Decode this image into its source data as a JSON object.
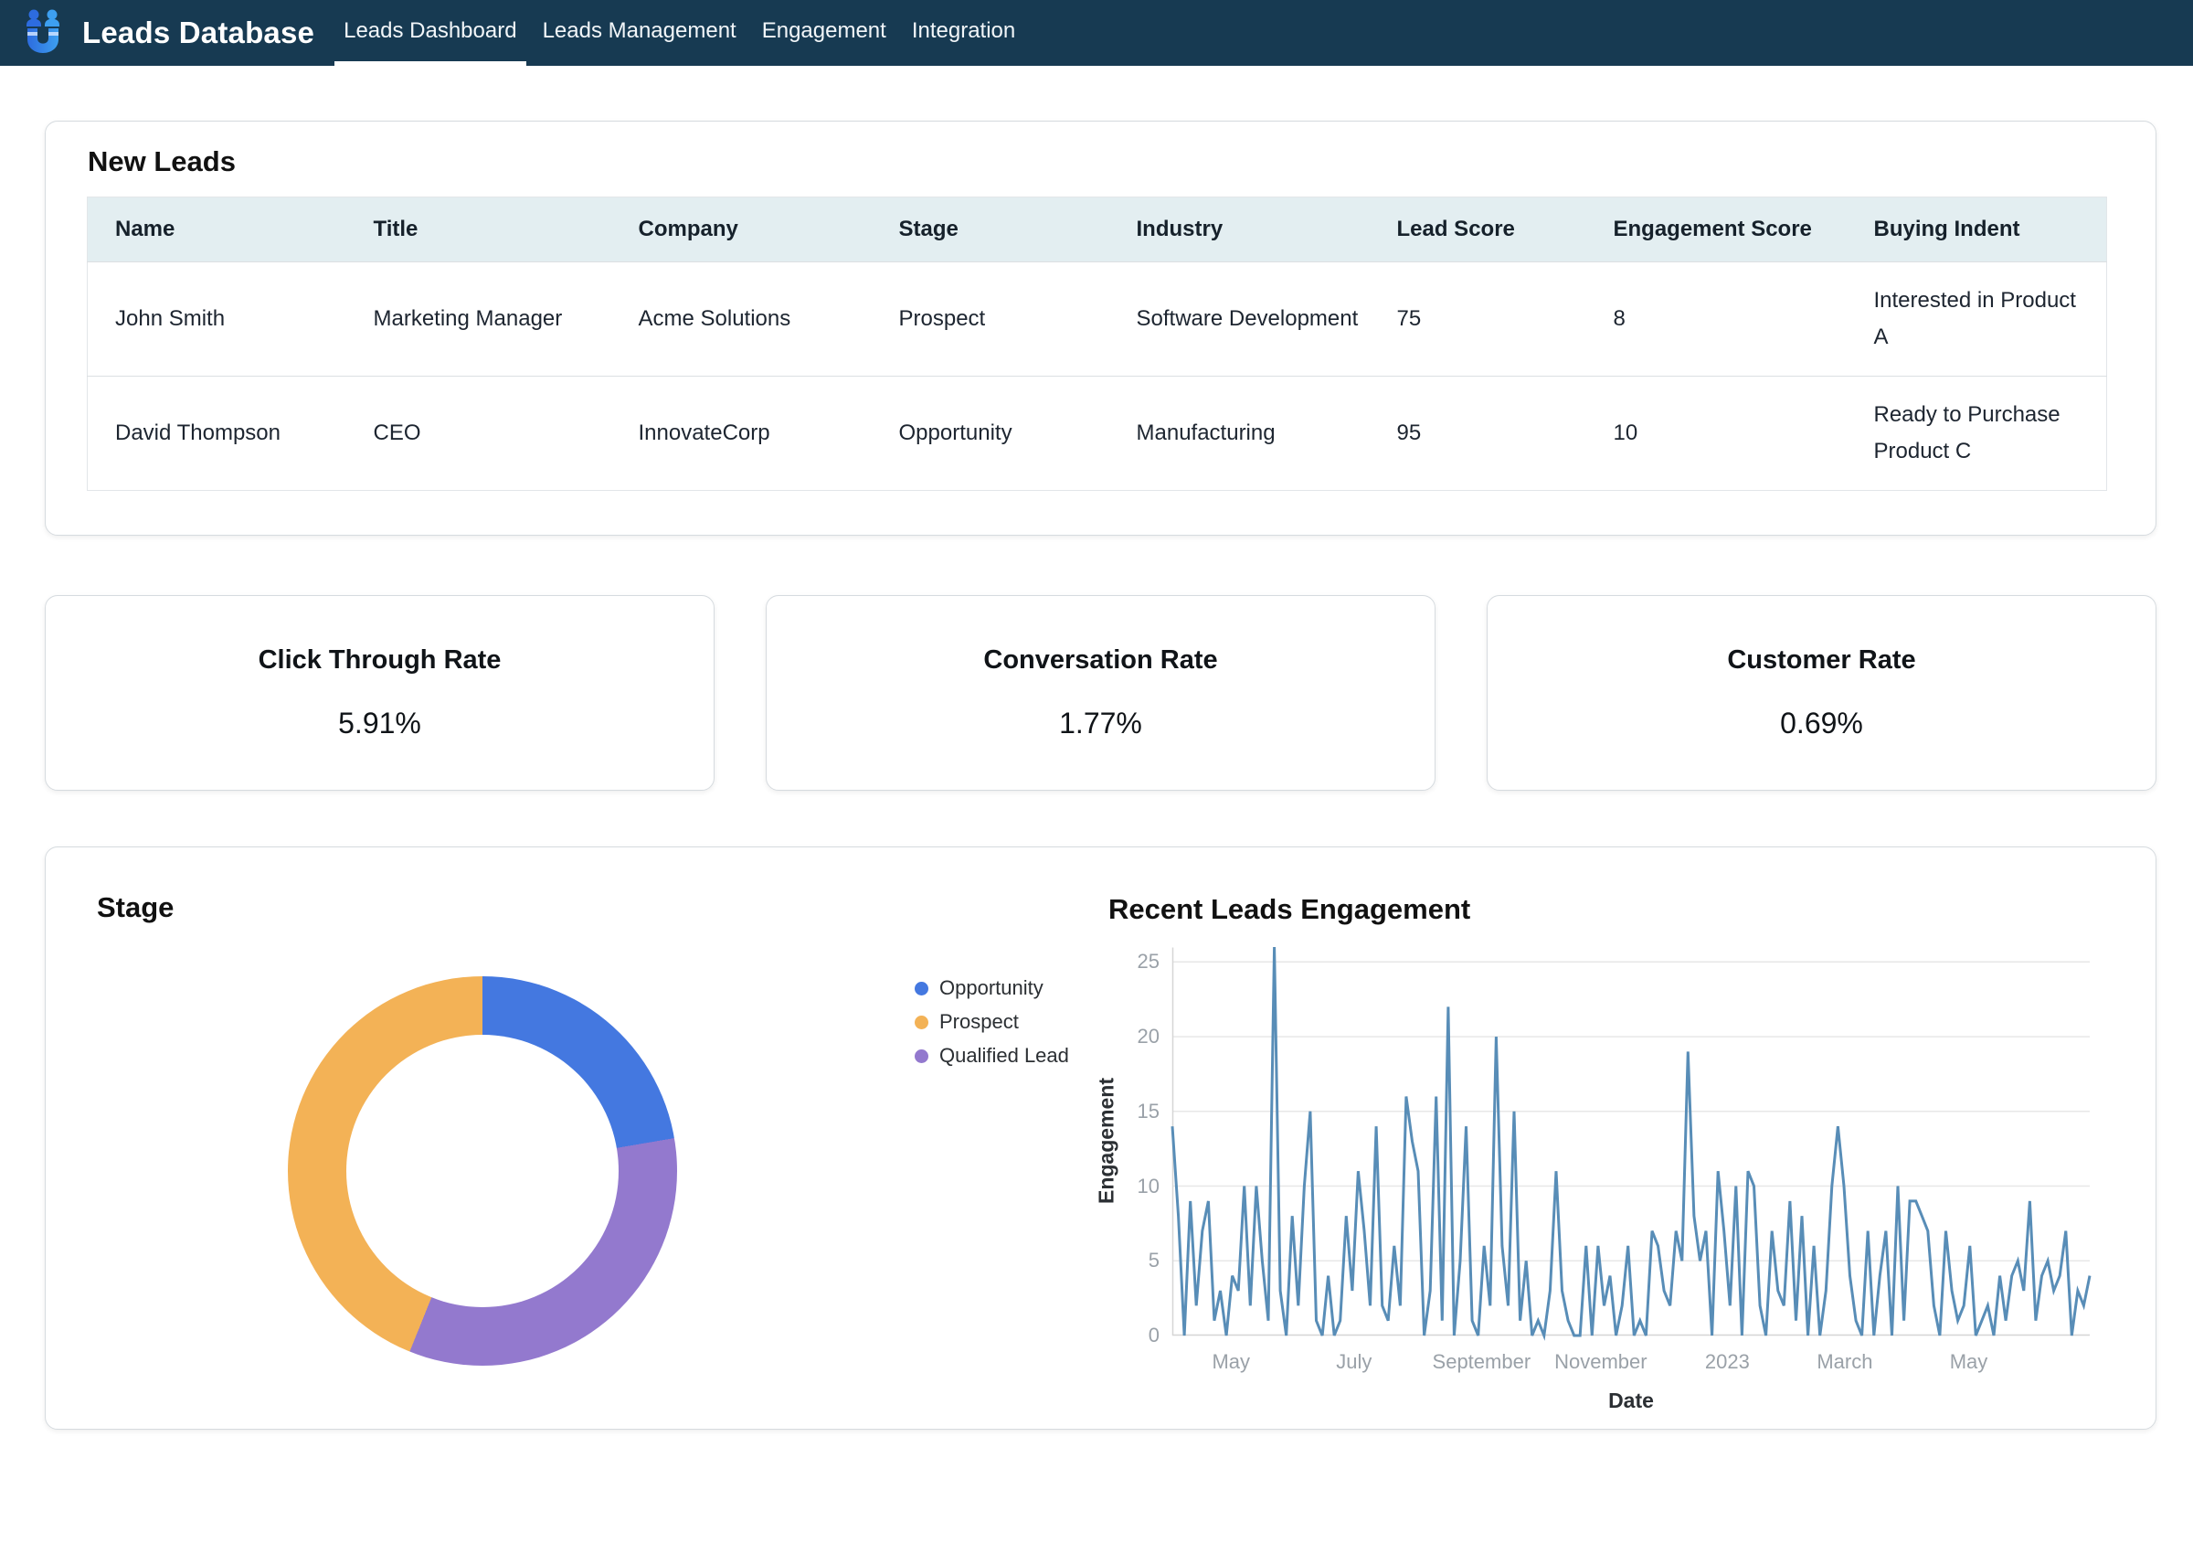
{
  "navbar": {
    "brand": "Leads Database",
    "items": [
      {
        "label": "Leads Dashboard",
        "active": true
      },
      {
        "label": "Leads Management",
        "active": false
      },
      {
        "label": "Engagement",
        "active": false
      },
      {
        "label": "Integration",
        "active": false
      }
    ]
  },
  "new_leads": {
    "title": "New Leads",
    "columns": [
      "Name",
      "Title",
      "Company",
      "Stage",
      "Industry",
      "Lead Score",
      "Engagement Score",
      "Buying Indent"
    ],
    "rows": [
      [
        "John Smith",
        "Marketing Manager",
        "Acme Solutions",
        "Prospect",
        "Software Development",
        "75",
        "8",
        "Interested in Product A"
      ],
      [
        "David Thompson",
        "CEO",
        "InnovateCorp",
        "Opportunity",
        "Manufacturing",
        "95",
        "10",
        "Ready to Purchase Product C"
      ]
    ]
  },
  "metrics": [
    {
      "title": "Click Through Rate",
      "value": "5.91%"
    },
    {
      "title": "Conversation Rate",
      "value": "1.77%"
    },
    {
      "title": "Customer Rate",
      "value": "0.69%"
    }
  ],
  "chart_data": [
    {
      "type": "pie",
      "title": "Stage",
      "donut": true,
      "legend_position": "right",
      "slices": [
        {
          "label": "Opportunity",
          "percent": 22.3,
          "color": "#4478e0"
        },
        {
          "label": "Qualified Lead",
          "percent": 33.8,
          "color": "#9379ce"
        },
        {
          "label": "Prospect",
          "percent": 43.9,
          "color": "#f3b256"
        }
      ],
      "legend": [
        {
          "label": "Opportunity",
          "color": "#4478e0"
        },
        {
          "label": "Prospect",
          "color": "#f3b256"
        },
        {
          "label": "Qualified Lead",
          "color": "#9379ce"
        }
      ]
    },
    {
      "type": "line",
      "title": "Recent Leads Engagement",
      "xlabel": "Date",
      "ylabel": "Engagement",
      "ylim": [
        0,
        26
      ],
      "yticks": [
        0,
        5,
        10,
        15,
        20,
        25
      ],
      "grid": true,
      "line_color": "#588db7",
      "xticks": [
        {
          "label": "May",
          "f": 0.064
        },
        {
          "label": "July",
          "f": 0.198
        },
        {
          "label": "September",
          "f": 0.337
        },
        {
          "label": "November",
          "f": 0.467
        },
        {
          "label": "2023",
          "f": 0.605
        },
        {
          "label": "March",
          "f": 0.733
        },
        {
          "label": "May",
          "f": 0.868
        }
      ],
      "values": [
        14,
        8,
        0,
        9,
        2,
        7,
        9,
        1,
        3,
        0,
        4,
        3,
        10,
        2,
        10,
        5,
        1,
        26,
        3,
        0,
        8,
        2,
        10,
        15,
        1,
        0,
        4,
        0,
        1,
        8,
        3,
        11,
        7,
        2,
        14,
        2,
        1,
        6,
        2,
        16,
        13,
        11,
        0,
        3,
        16,
        1,
        22,
        0,
        5,
        14,
        1,
        0,
        6,
        2,
        20,
        6,
        2,
        15,
        1,
        5,
        0,
        1,
        0,
        3,
        11,
        3,
        1,
        0,
        0,
        6,
        0,
        6,
        2,
        4,
        0,
        2,
        6,
        0,
        1,
        0,
        7,
        6,
        3,
        2,
        7,
        5,
        19,
        8,
        5,
        7,
        0,
        11,
        7,
        2,
        10,
        0,
        11,
        10,
        2,
        0,
        7,
        3,
        2,
        9,
        1,
        8,
        0,
        6,
        0,
        3,
        10,
        14,
        10,
        4,
        1,
        0,
        7,
        0,
        4,
        7,
        0,
        10,
        1,
        9,
        9,
        8,
        7,
        2,
        0,
        7,
        3,
        1,
        2,
        6,
        0,
        1,
        2,
        0,
        4,
        1,
        4,
        5,
        3,
        9,
        1,
        4,
        5,
        3,
        4,
        7,
        0,
        3,
        2,
        4
      ]
    }
  ]
}
